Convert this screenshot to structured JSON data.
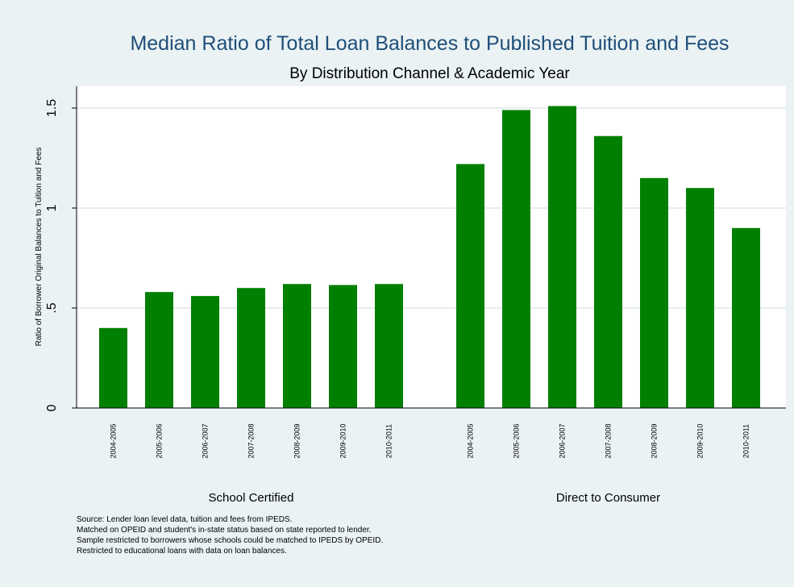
{
  "chart_data": {
    "type": "bar",
    "title": "Median Ratio of Total Loan Balances to Published Tuition and Fees",
    "subtitle": "By Distribution Channel & Academic Year",
    "ylabel": "Ratio of Borrower Original Balances to Tuition and Fees",
    "xlabel": "",
    "ylim": [
      0,
      1.6
    ],
    "yticks": [
      0,
      0.5,
      1,
      1.5
    ],
    "ytick_labels": [
      "0",
      ".5",
      "1",
      "1.5"
    ],
    "grid": true,
    "bar_color": "#007f00",
    "groups": [
      {
        "name": "School Certified",
        "categories": [
          "2004-2005",
          "2005-2006",
          "2006-2007",
          "2007-2008",
          "2008-2009",
          "2009-2010",
          "2010-2011"
        ],
        "values": [
          0.4,
          0.58,
          0.56,
          0.6,
          0.62,
          0.615,
          0.62
        ]
      },
      {
        "name": "Direct to Consumer",
        "categories": [
          "2004-2005",
          "2005-2006",
          "2006-2007",
          "2007-2008",
          "2008-2009",
          "2009-2010",
          "2010-2011"
        ],
        "values": [
          1.22,
          1.49,
          1.51,
          1.36,
          1.15,
          1.1,
          0.9
        ]
      }
    ]
  },
  "notes": [
    "Source: Lender loan level data, tuition and fees from IPEDS.",
    "Matched on OPEID and student's in-state status based on state reported to lender.",
    "Sample restricted to borrowers whose schools could be matched to IPEDS by OPEID.",
    "Restricted to educational loans with data on loan balances."
  ],
  "colors": {
    "background": "#eaf2f3",
    "plot_background": "#ffffff",
    "title": "#1f4e79",
    "bars": "#007f00"
  }
}
